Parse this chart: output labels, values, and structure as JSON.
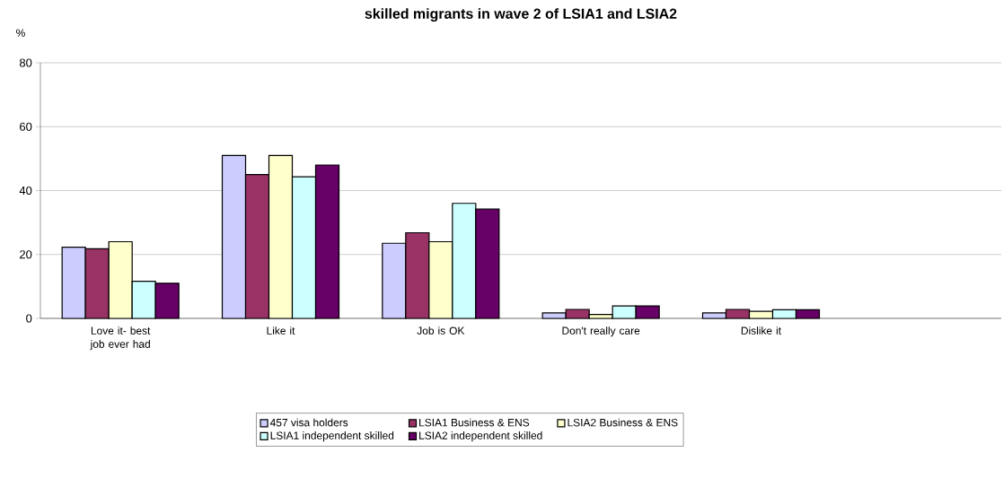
{
  "chart_data": {
    "type": "bar",
    "title": "skilled migrants in wave 2 of LSIA1 and LSIA2",
    "ylabel": "%",
    "categories": [
      "Love it- best job ever had",
      "Like it",
      "Job is OK",
      "Don't really care",
      "Dislike it",
      null
    ],
    "series": [
      {
        "name": "457 visa holders",
        "color": "#ccccff",
        "values": [
          22.3,
          51,
          23.5,
          1.7,
          1.7,
          null
        ]
      },
      {
        "name": "LSIA1 Business & ENS",
        "color": "#993366",
        "values": [
          21.8,
          45,
          26.8,
          2.8,
          2.8,
          null
        ]
      },
      {
        "name": "LSIA2 Business & ENS",
        "color": "#ffffcc",
        "values": [
          24,
          51,
          24,
          1.2,
          2.2,
          null
        ]
      },
      {
        "name": "LSIA1 independent skilled",
        "color": "#ccffff",
        "values": [
          11.6,
          44.3,
          36,
          3.9,
          2.7,
          null
        ]
      },
      {
        "name": "LSIA2 independent skilled",
        "color": "#660066",
        "values": [
          11,
          48,
          34.2,
          3.9,
          2.7,
          null
        ]
      }
    ],
    "ylim": [
      0,
      80
    ],
    "yticks": [
      0,
      20,
      40,
      60,
      80
    ],
    "grid": "y",
    "legend": "bottom"
  }
}
